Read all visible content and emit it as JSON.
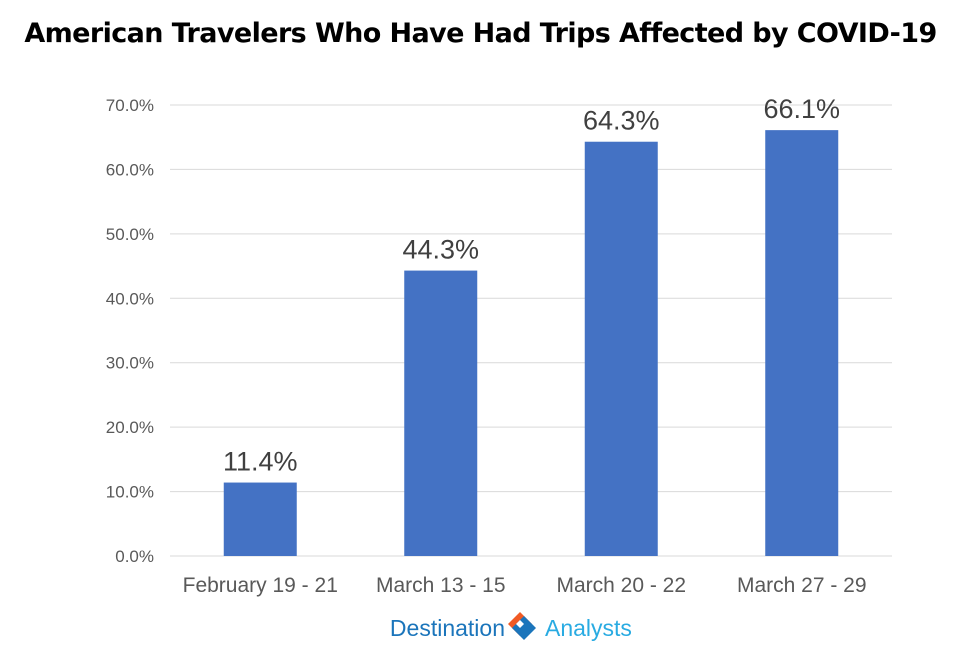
{
  "chart_data": {
    "type": "bar",
    "title": "American Travelers Who Have Had Trips Affected by COVID-19",
    "categories": [
      "February 19 - 21",
      "March 13 - 15",
      "March 20 - 22",
      "March 27 - 29"
    ],
    "values": [
      11.4,
      44.3,
      64.3,
      66.1
    ],
    "data_labels": [
      "11.4%",
      "44.3%",
      "64.3%",
      "66.1%"
    ],
    "yticks": [
      0,
      10,
      20,
      30,
      40,
      50,
      60,
      70
    ],
    "ytick_labels": [
      "0.0%",
      "10.0%",
      "20.0%",
      "30.0%",
      "40.0%",
      "50.0%",
      "60.0%",
      "70.0%"
    ],
    "ylim": [
      0,
      70
    ],
    "xlabel": "",
    "ylabel": "",
    "grid": true,
    "legend": "none",
    "colors": {
      "bar": "#4472C4",
      "grid": "#D9D9D9",
      "tick_text": "#595959",
      "data_label": "#404040"
    }
  },
  "branding": {
    "logo_left_text": "Destination",
    "logo_right_text": "Analysts",
    "colors": {
      "primary": "#1B75BB",
      "secondary": "#29ABE2",
      "accent": "#F15A24"
    }
  }
}
